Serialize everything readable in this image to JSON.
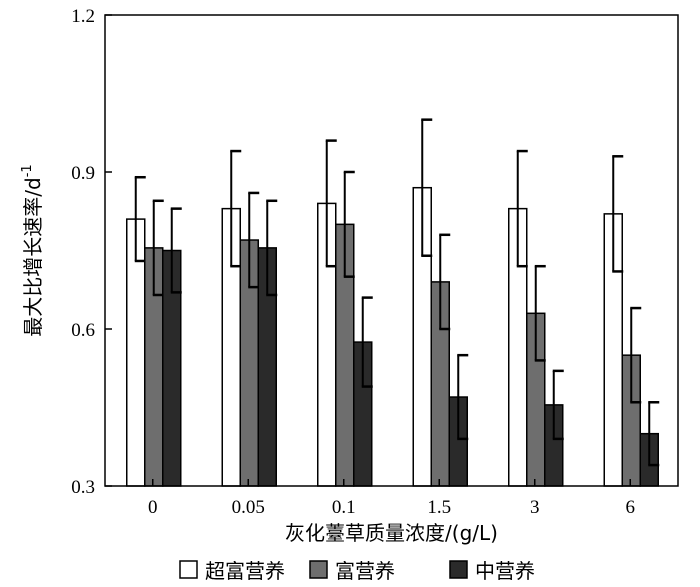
{
  "chart_data": {
    "type": "bar",
    "title": "",
    "xlabel": "灰化薹草质量浓度/(g/L)",
    "ylabel": "最大比增长速率/d",
    "ylabel_superscript": "-1",
    "categories": [
      "0",
      "0.05",
      "0.1",
      "1.5",
      "3",
      "6"
    ],
    "ylim": [
      0.3,
      1.2
    ],
    "yticks": [
      "0.3",
      "0.6",
      "0.9",
      "1.2"
    ],
    "series": [
      {
        "name": "超富营养",
        "color": "#ffffff",
        "values": [
          0.81,
          0.83,
          0.84,
          0.87,
          0.83,
          0.82
        ],
        "errors": [
          0.08,
          0.11,
          0.12,
          0.13,
          0.11,
          0.11
        ]
      },
      {
        "name": "富营养",
        "color": "#6e6e6e",
        "values": [
          0.755,
          0.77,
          0.8,
          0.69,
          0.63,
          0.55
        ],
        "errors": [
          0.09,
          0.09,
          0.1,
          0.09,
          0.09,
          0.09
        ]
      },
      {
        "name": "中营养",
        "color": "#2a2a2a",
        "values": [
          0.75,
          0.755,
          0.575,
          0.47,
          0.455,
          0.4
        ],
        "errors": [
          0.08,
          0.09,
          0.085,
          0.08,
          0.065,
          0.06
        ]
      }
    ],
    "legend_position": "bottom",
    "grid": false
  }
}
